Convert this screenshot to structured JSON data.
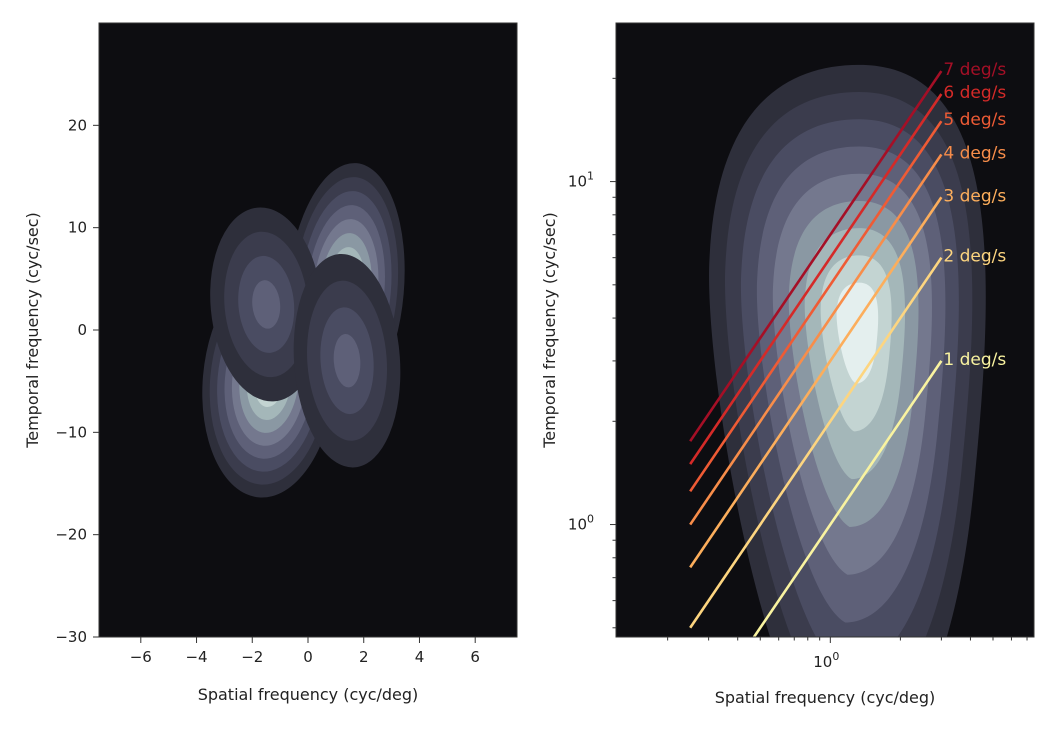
{
  "chart_data": [
    {
      "type": "heatmap",
      "subtype": "filled-contour",
      "title": "",
      "xlabel": "Spatial frequency (cyc/deg)",
      "ylabel": "Temporal frequency (cyc/sec)",
      "xlim": [
        -7.5,
        7.5
      ],
      "ylim": [
        -30,
        30
      ],
      "xticks": [
        -6,
        -4,
        -2,
        0,
        2,
        4,
        6
      ],
      "xtick_labels": [
        "−6",
        "−4",
        "−2",
        "0",
        "2",
        "4",
        "6"
      ],
      "yticks": [
        -30,
        -20,
        -10,
        0,
        10,
        20
      ],
      "ytick_labels": [
        "−30",
        "−20",
        "−10",
        "0",
        "10",
        "20"
      ],
      "colormap": "bone",
      "background_color": "#0d0d11",
      "blobs": [
        {
          "quadrant": "top-right",
          "center": [
            1.35,
            4
          ],
          "peak": 1.0
        },
        {
          "quadrant": "bottom-left",
          "center": [
            -1.4,
            -5
          ],
          "peak": 0.96
        },
        {
          "quadrant": "top-left",
          "center": [
            -1.5,
            2.5
          ],
          "peak": 0.42
        },
        {
          "quadrant": "bottom-right",
          "center": [
            1.4,
            -3
          ],
          "peak": 0.42
        }
      ]
    },
    {
      "type": "heatmap",
      "subtype": "filled-contour-with-lines",
      "title": "",
      "xlabel": "Spatial frequency (cyc/deg)",
      "ylabel": "Temporal frequency (cyc/sec)",
      "xscale": "log",
      "yscale": "log",
      "xlim": [
        0.12,
        7.5
      ],
      "ylim": [
        0.47,
        29
      ],
      "xticks": [
        1
      ],
      "xtick_labels": [
        "10^0"
      ],
      "yticks": [
        1,
        10
      ],
      "ytick_labels": [
        "10^0",
        "10^1"
      ],
      "colormap": "bone",
      "background_color": "#0d0d11",
      "blob": {
        "center": [
          1.33,
          3.9
        ],
        "peak": 1.0
      },
      "line_x_range": [
        0.25,
        3.0
      ],
      "lines": [
        {
          "label": "1 deg/s",
          "speed": 1,
          "color": "#f9f3a0"
        },
        {
          "label": "2 deg/s",
          "speed": 2,
          "color": "#fdd580"
        },
        {
          "label": "3 deg/s",
          "speed": 3,
          "color": "#fcae5c"
        },
        {
          "label": "4 deg/s",
          "speed": 4,
          "color": "#f88d4a"
        },
        {
          "label": "5 deg/s",
          "speed": 5,
          "color": "#ef5b35"
        },
        {
          "label": "6 deg/s",
          "speed": 6,
          "color": "#d42a28"
        },
        {
          "label": "7 deg/s",
          "speed": 7,
          "color": "#a50f26"
        }
      ]
    }
  ]
}
